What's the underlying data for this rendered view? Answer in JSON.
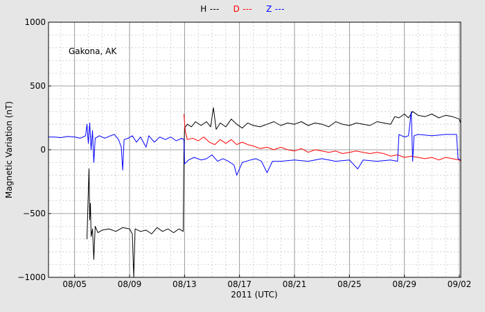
{
  "chart_data": {
    "type": "line",
    "title": "",
    "annotation": "Gakona, AK",
    "xlabel": "2011 (UTC)",
    "ylabel": "Magnetic Variation (nT)",
    "x_tick_labels": [
      "08/05",
      "08/09",
      "08/13",
      "08/17",
      "08/21",
      "08/25",
      "08/29",
      "09/02"
    ],
    "x_tick_days": [
      0,
      4,
      8,
      12,
      16,
      20,
      24,
      28
    ],
    "xlim_days": [
      -1.9,
      28.1
    ],
    "y_ticks": [
      1000,
      500,
      0,
      -500,
      -1000
    ],
    "y_tick_labels": [
      "1000",
      "500",
      "0",
      "−500",
      "−1000"
    ],
    "ylim": [
      -1000,
      1000
    ],
    "grid": true,
    "legend": [
      {
        "label": "H ---",
        "color": "#000000"
      },
      {
        "label": "D ---",
        "color": "#ff0000"
      },
      {
        "label": "Z ---",
        "color": "#0000ff"
      }
    ],
    "series": [
      {
        "name": "H",
        "color": "#000000",
        "points": [
          [
            0.9,
            -700
          ],
          [
            1.0,
            -320
          ],
          [
            1.05,
            -150
          ],
          [
            1.1,
            -550
          ],
          [
            1.15,
            -420
          ],
          [
            1.2,
            -680
          ],
          [
            1.3,
            -620
          ],
          [
            1.4,
            -860
          ],
          [
            1.5,
            -600
          ],
          [
            1.7,
            -650
          ],
          [
            2.0,
            -630
          ],
          [
            2.5,
            -620
          ],
          [
            3.0,
            -640
          ],
          [
            3.5,
            -610
          ],
          [
            4.0,
            -620
          ],
          [
            4.2,
            -660
          ],
          [
            4.3,
            -1000
          ],
          [
            4.4,
            -620
          ],
          [
            4.8,
            -640
          ],
          [
            5.2,
            -630
          ],
          [
            5.6,
            -660
          ],
          [
            6.0,
            -610
          ],
          [
            6.4,
            -640
          ],
          [
            6.8,
            -620
          ],
          [
            7.2,
            -650
          ],
          [
            7.6,
            -620
          ],
          [
            7.9,
            -640
          ],
          [
            7.95,
            -30
          ],
          [
            8.0,
            170
          ],
          [
            8.2,
            200
          ],
          [
            8.5,
            180
          ],
          [
            8.8,
            220
          ],
          [
            9.2,
            190
          ],
          [
            9.6,
            220
          ],
          [
            9.9,
            180
          ],
          [
            10.1,
            330
          ],
          [
            10.3,
            160
          ],
          [
            10.6,
            210
          ],
          [
            11.0,
            180
          ],
          [
            11.4,
            240
          ],
          [
            11.8,
            200
          ],
          [
            12.2,
            170
          ],
          [
            12.6,
            210
          ],
          [
            13.0,
            190
          ],
          [
            13.5,
            180
          ],
          [
            14.0,
            200
          ],
          [
            14.5,
            220
          ],
          [
            15.0,
            190
          ],
          [
            15.5,
            210
          ],
          [
            16.0,
            200
          ],
          [
            16.5,
            220
          ],
          [
            17.0,
            190
          ],
          [
            17.5,
            210
          ],
          [
            18.0,
            200
          ],
          [
            18.5,
            180
          ],
          [
            19.0,
            220
          ],
          [
            19.5,
            200
          ],
          [
            20.0,
            190
          ],
          [
            20.5,
            210
          ],
          [
            21.0,
            200
          ],
          [
            21.5,
            190
          ],
          [
            22.0,
            220
          ],
          [
            22.5,
            210
          ],
          [
            23.0,
            200
          ],
          [
            23.3,
            260
          ],
          [
            23.6,
            250
          ],
          [
            24.0,
            280
          ],
          [
            24.3,
            250
          ],
          [
            24.6,
            300
          ],
          [
            25.0,
            270
          ],
          [
            25.5,
            260
          ],
          [
            26.0,
            280
          ],
          [
            26.5,
            250
          ],
          [
            27.0,
            270
          ],
          [
            27.5,
            260
          ],
          [
            28.0,
            240
          ],
          [
            28.1,
            210
          ]
        ]
      },
      {
        "name": "D",
        "color": "#ff0000",
        "points": [
          [
            7.95,
            280
          ],
          [
            8.05,
            150
          ],
          [
            8.2,
            80
          ],
          [
            8.6,
            90
          ],
          [
            9.0,
            70
          ],
          [
            9.4,
            100
          ],
          [
            9.8,
            60
          ],
          [
            10.2,
            40
          ],
          [
            10.6,
            80
          ],
          [
            11.0,
            50
          ],
          [
            11.4,
            80
          ],
          [
            11.8,
            40
          ],
          [
            12.2,
            60
          ],
          [
            12.6,
            40
          ],
          [
            13.0,
            30
          ],
          [
            13.5,
            10
          ],
          [
            14.0,
            20
          ],
          [
            14.5,
            0
          ],
          [
            15.0,
            20
          ],
          [
            15.5,
            0
          ],
          [
            16.0,
            -10
          ],
          [
            16.5,
            10
          ],
          [
            17.0,
            -20
          ],
          [
            17.5,
            0
          ],
          [
            18.0,
            -10
          ],
          [
            18.5,
            -20
          ],
          [
            19.0,
            -10
          ],
          [
            19.5,
            -30
          ],
          [
            20.0,
            -20
          ],
          [
            20.5,
            -10
          ],
          [
            21.0,
            -20
          ],
          [
            21.5,
            -30
          ],
          [
            22.0,
            -20
          ],
          [
            22.5,
            -30
          ],
          [
            23.0,
            -50
          ],
          [
            23.5,
            -40
          ],
          [
            24.0,
            -60
          ],
          [
            24.5,
            -50
          ],
          [
            25.0,
            -60
          ],
          [
            25.5,
            -70
          ],
          [
            26.0,
            -60
          ],
          [
            26.5,
            -80
          ],
          [
            27.0,
            -60
          ],
          [
            27.5,
            -70
          ],
          [
            28.0,
            -80
          ],
          [
            28.1,
            -90
          ]
        ]
      },
      {
        "name": "Z",
        "color": "#0000ff",
        "points": [
          [
            -1.9,
            100
          ],
          [
            -1.5,
            100
          ],
          [
            -1.0,
            95
          ],
          [
            -0.5,
            105
          ],
          [
            0.0,
            100
          ],
          [
            0.4,
            90
          ],
          [
            0.8,
            110
          ],
          [
            0.9,
            200
          ],
          [
            1.0,
            50
          ],
          [
            1.1,
            210
          ],
          [
            1.2,
            0
          ],
          [
            1.3,
            150
          ],
          [
            1.4,
            -100
          ],
          [
            1.5,
            90
          ],
          [
            1.8,
            110
          ],
          [
            2.2,
            90
          ],
          [
            2.6,
            110
          ],
          [
            2.9,
            120
          ],
          [
            3.2,
            80
          ],
          [
            3.4,
            20
          ],
          [
            3.5,
            -160
          ],
          [
            3.6,
            80
          ],
          [
            3.9,
            90
          ],
          [
            4.2,
            110
          ],
          [
            4.5,
            60
          ],
          [
            4.8,
            100
          ],
          [
            5.2,
            20
          ],
          [
            5.4,
            110
          ],
          [
            5.8,
            60
          ],
          [
            6.2,
            100
          ],
          [
            6.6,
            80
          ],
          [
            7.0,
            100
          ],
          [
            7.4,
            70
          ],
          [
            7.8,
            90
          ],
          [
            7.95,
            80
          ],
          [
            8.0,
            -110
          ],
          [
            8.3,
            -80
          ],
          [
            8.7,
            -60
          ],
          [
            9.2,
            -80
          ],
          [
            9.6,
            -70
          ],
          [
            10.0,
            -40
          ],
          [
            10.4,
            -90
          ],
          [
            10.8,
            -70
          ],
          [
            11.2,
            -90
          ],
          [
            11.6,
            -120
          ],
          [
            11.8,
            -200
          ],
          [
            12.2,
            -100
          ],
          [
            12.8,
            -80
          ],
          [
            13.2,
            -70
          ],
          [
            13.6,
            -90
          ],
          [
            14.0,
            -180
          ],
          [
            14.4,
            -90
          ],
          [
            15.0,
            -90
          ],
          [
            16.0,
            -80
          ],
          [
            17.0,
            -90
          ],
          [
            18.0,
            -70
          ],
          [
            19.0,
            -90
          ],
          [
            20.0,
            -80
          ],
          [
            20.6,
            -150
          ],
          [
            21.0,
            -80
          ],
          [
            22.0,
            -90
          ],
          [
            23.0,
            -80
          ],
          [
            23.5,
            -90
          ],
          [
            23.6,
            120
          ],
          [
            24.0,
            100
          ],
          [
            24.3,
            110
          ],
          [
            24.5,
            300
          ],
          [
            24.6,
            -90
          ],
          [
            24.7,
            110
          ],
          [
            25.0,
            120
          ],
          [
            26.0,
            110
          ],
          [
            27.0,
            120
          ],
          [
            27.8,
            120
          ],
          [
            27.9,
            -70
          ],
          [
            28.1,
            -80
          ]
        ]
      }
    ]
  }
}
